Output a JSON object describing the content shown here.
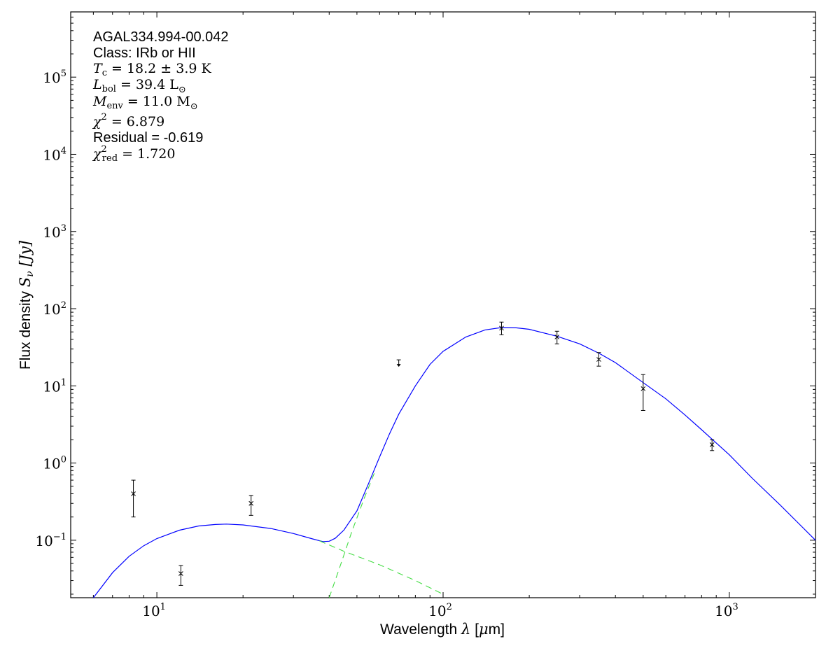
{
  "chart_data": {
    "type": "scatter",
    "title": "",
    "xlabel": {
      "text": "Wavelength",
      "symbol": "λ",
      "unit_open": " [",
      "unit_mu": "μ",
      "unit_rest": "m]"
    },
    "ylabel": {
      "text": "Flux density",
      "symbol": "S",
      "sub": "ν",
      "unit": " [Jy]"
    },
    "xscale": "log",
    "yscale": "log",
    "xlim": [
      5,
      2000
    ],
    "ylim": [
      0.018,
      700000
    ],
    "grid": false,
    "x_ticks": [
      {
        "value": 10,
        "base": "10",
        "exp": "1"
      },
      {
        "value": 100,
        "base": "10",
        "exp": "2"
      },
      {
        "value": 1000,
        "base": "10",
        "exp": "3"
      }
    ],
    "y_ticks": [
      {
        "value": 0.1,
        "base": "10",
        "exp": "−1"
      },
      {
        "value": 1,
        "base": "10",
        "exp": "0"
      },
      {
        "value": 10,
        "base": "10",
        "exp": "1"
      },
      {
        "value": 100,
        "base": "10",
        "exp": "2"
      },
      {
        "value": 1000,
        "base": "10",
        "exp": "3"
      },
      {
        "value": 10000,
        "base": "10",
        "exp": "4"
      },
      {
        "value": 100000,
        "base": "10",
        "exp": "5"
      }
    ],
    "annotations": {
      "source": "AGAL334.994-00.042",
      "class_line": "Class: IRb or HII",
      "tc": {
        "sym": "T",
        "sub": "c",
        "rest": " = 18.2 ± 3.9 K"
      },
      "lbol": {
        "sym": "L",
        "sub": "bol",
        "rest": " = 39.4 L",
        "sun": "⊙"
      },
      "menv": {
        "sym": "M",
        "sub": "env",
        "rest": " = 11.0 M",
        "sun": "⊙"
      },
      "chi2": {
        "sym": "χ",
        "sup": "2",
        "rest": " = 6.879"
      },
      "residual": "Residual = -0.619",
      "chi2red": {
        "sym": "χ",
        "sup": "2",
        "sub": "red",
        "rest": " = 1.720"
      }
    },
    "measurements": [
      {
        "x": 8.28,
        "y": 0.4,
        "err_lo": 0.2,
        "err_hi": 0.6
      },
      {
        "x": 12.13,
        "y": 0.037,
        "err_lo": 0.026,
        "err_hi": 0.047
      },
      {
        "x": 21.34,
        "y": 0.3,
        "err_lo": 0.21,
        "err_hi": 0.38
      },
      {
        "x": 160,
        "y": 56,
        "err_lo": 46,
        "err_hi": 67
      },
      {
        "x": 250,
        "y": 43,
        "err_lo": 35,
        "err_hi": 51
      },
      {
        "x": 350,
        "y": 22,
        "err_lo": 18,
        "err_hi": 27
      },
      {
        "x": 500,
        "y": 9.2,
        "err_lo": 4.8,
        "err_hi": 14
      },
      {
        "x": 870,
        "y": 1.73,
        "err_lo": 1.45,
        "err_hi": 2.0
      }
    ],
    "upper_limits": [
      {
        "x": 70,
        "y": 20
      }
    ],
    "series": [
      {
        "style": "solid",
        "color": "#0000ff",
        "points": [
          [
            6.0,
            0.018
          ],
          [
            7.0,
            0.038
          ],
          [
            8.0,
            0.062
          ],
          [
            9.0,
            0.085
          ],
          [
            10.0,
            0.105
          ],
          [
            12.0,
            0.135
          ],
          [
            14.0,
            0.153
          ],
          [
            16.0,
            0.16
          ],
          [
            17.5,
            0.162
          ],
          [
            20.0,
            0.158
          ],
          [
            25.0,
            0.142
          ],
          [
            30.0,
            0.122
          ],
          [
            35.0,
            0.104
          ],
          [
            38.0,
            0.096
          ],
          [
            40.0,
            0.097
          ],
          [
            42.0,
            0.106
          ],
          [
            45.0,
            0.135
          ],
          [
            50.0,
            0.24
          ],
          [
            55.0,
            0.55
          ],
          [
            60.0,
            1.2
          ],
          [
            65.0,
            2.4
          ],
          [
            70.0,
            4.3
          ],
          [
            80.0,
            10.0
          ],
          [
            90.0,
            19.0
          ],
          [
            100.0,
            28.0
          ],
          [
            120.0,
            43.0
          ],
          [
            140.0,
            53.0
          ],
          [
            160.0,
            57.0
          ],
          [
            180.0,
            56.5
          ],
          [
            200.0,
            54.0
          ],
          [
            250.0,
            44.0
          ],
          [
            300.0,
            35.0
          ],
          [
            350.0,
            26.5
          ],
          [
            400.0,
            20.0
          ],
          [
            500.0,
            11.0
          ],
          [
            600.0,
            6.8
          ],
          [
            700.0,
            4.2
          ],
          [
            800.0,
            2.7
          ],
          [
            900.0,
            1.82
          ],
          [
            1000.0,
            1.28
          ],
          [
            1200.0,
            0.64
          ],
          [
            1500.0,
            0.29
          ],
          [
            2000.0,
            0.1
          ]
        ]
      },
      {
        "style": "dashed",
        "color": "#44dd44",
        "points": [
          [
            37.0,
            0.098
          ],
          [
            45.0,
            0.072
          ],
          [
            60.0,
            0.048
          ],
          [
            80.0,
            0.03
          ],
          [
            100.0,
            0.02
          ]
        ]
      },
      {
        "style": "dashed",
        "color": "#44dd44",
        "points": [
          [
            40.0,
            0.018
          ],
          [
            44.0,
            0.05
          ],
          [
            48.0,
            0.13
          ],
          [
            53.0,
            0.35
          ],
          [
            58.0,
            0.8
          ]
        ]
      }
    ]
  }
}
